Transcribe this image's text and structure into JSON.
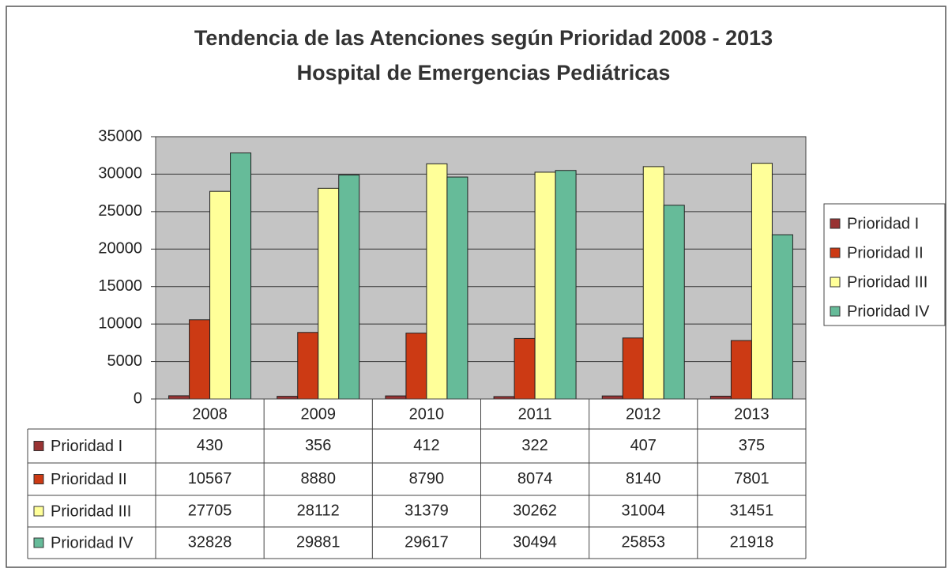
{
  "chart_data": {
    "type": "bar",
    "title": "Tendencia de las Atenciones según Prioridad 2008 - 2013",
    "subtitle": "Hospital de Emergencias Pediátricas",
    "categories": [
      "2008",
      "2009",
      "2010",
      "2011",
      "2012",
      "2013"
    ],
    "series": [
      {
        "name": "Prioridad I",
        "color": "#993333",
        "values": [
          430,
          356,
          412,
          322,
          407,
          375
        ]
      },
      {
        "name": "Prioridad II",
        "color": "#cc3a14",
        "values": [
          10567,
          8880,
          8790,
          8074,
          8140,
          7801
        ]
      },
      {
        "name": "Prioridad III",
        "color": "#ffff99",
        "values": [
          27705,
          28112,
          31379,
          30262,
          31004,
          31451
        ]
      },
      {
        "name": "Prioridad IV",
        "color": "#66bb99",
        "values": [
          32828,
          29881,
          29617,
          30494,
          25853,
          21918
        ]
      }
    ],
    "ylim": [
      0,
      35000
    ],
    "yticks": [
      0,
      5000,
      10000,
      15000,
      20000,
      25000,
      30000,
      35000
    ],
    "grid": true,
    "legend": "right"
  }
}
